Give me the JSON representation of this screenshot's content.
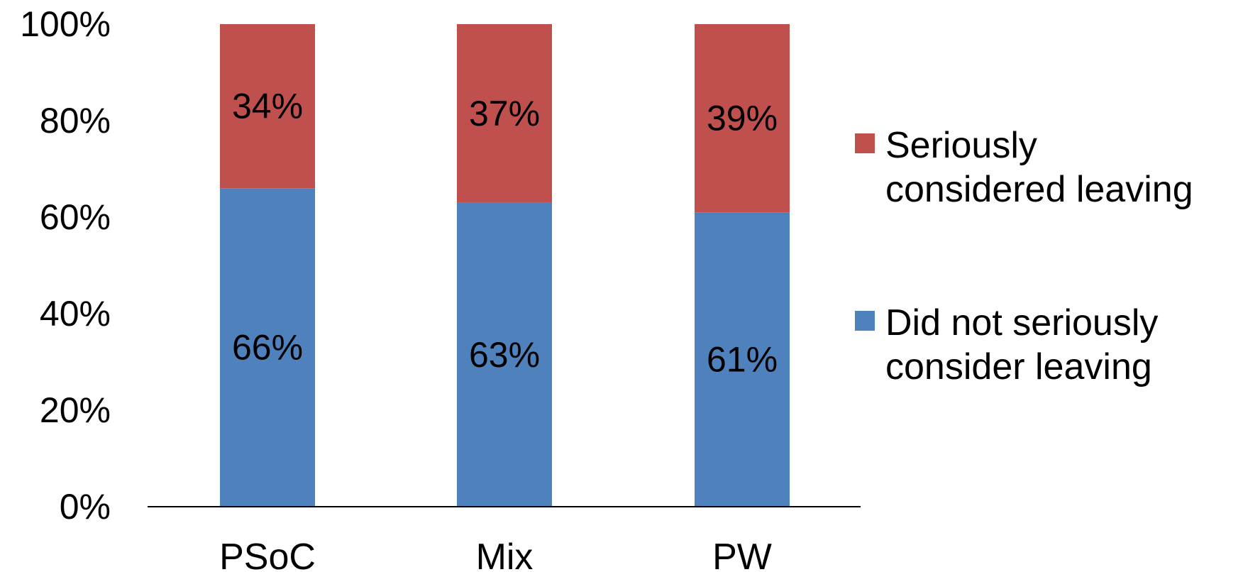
{
  "chart_data": {
    "type": "bar",
    "stacked": true,
    "categories": [
      "PSoC",
      "Mix",
      "PW"
    ],
    "series": [
      {
        "name": "Did not seriously consider leaving",
        "legend_lines": [
          "Did not seriously",
          "consider leaving"
        ],
        "values": [
          66,
          63,
          61
        ],
        "labels": [
          "66%",
          "63%",
          "61%"
        ],
        "color": "#4F81BD"
      },
      {
        "name": "Seriously considered leaving",
        "legend_lines": [
          "Seriously",
          "considered leaving"
        ],
        "values": [
          34,
          37,
          39
        ],
        "labels": [
          "34%",
          "37%",
          "39%"
        ],
        "color": "#C0504D"
      }
    ],
    "ylim": [
      0,
      100
    ],
    "y_ticks": [
      0,
      20,
      40,
      60,
      80,
      100
    ],
    "y_tick_labels": [
      "0%",
      "20%",
      "40%",
      "60%",
      "80%",
      "100%"
    ],
    "title": "",
    "xlabel": "",
    "ylabel": "",
    "grid": false,
    "legend_position": "right"
  }
}
